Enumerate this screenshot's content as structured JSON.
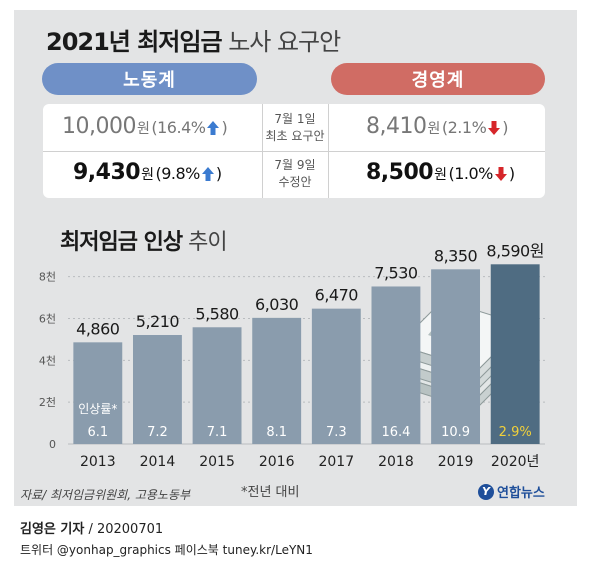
{
  "header": {
    "title_main": "2021년 최저임금",
    "title_sub": " 노사 요구안"
  },
  "labor": {
    "label": "노동계",
    "initial": {
      "value": "10,000",
      "unit": "원",
      "pct": "(16.4%",
      "close": ")",
      "direction": "up"
    },
    "revised": {
      "value": "9,430",
      "unit": "원",
      "pct": "(9.8%",
      "close": ")",
      "direction": "up"
    }
  },
  "management": {
    "label": "경영계",
    "initial": {
      "value": "8,410",
      "unit": "원",
      "pct": "(2.1%",
      "close": ")",
      "direction": "down"
    },
    "revised": {
      "value": "8,500",
      "unit": "원",
      "pct": "(1.0%",
      "close": ")",
      "direction": "down"
    }
  },
  "middle": {
    "initial_line1": "7월 1일",
    "initial_line2": "최초 요구안",
    "revised_line1": "7월 9일",
    "revised_line2": "수정안"
  },
  "colors": {
    "labor": "#6f90c7",
    "management": "#d06c64",
    "up_arrow": "#3b7bd0",
    "down_arrow": "#d6262a",
    "bar": "#8a9cad",
    "bar_highlight": "#4f6c82",
    "highlight_rate": "#f2d13a"
  },
  "chart_data": {
    "type": "bar",
    "title_main": "최저임금 인상",
    "title_sub": " 추이",
    "categories": [
      "2013",
      "2014",
      "2015",
      "2016",
      "2017",
      "2018",
      "2019",
      "2020년"
    ],
    "values": [
      4860,
      5210,
      5580,
      6030,
      6470,
      7530,
      8350,
      8590
    ],
    "value_labels": [
      "4,860",
      "5,210",
      "5,580",
      "6,030",
      "6,470",
      "7,530",
      "8,350",
      "8,590원"
    ],
    "rates": [
      "6.1",
      "7.2",
      "7.1",
      "8.1",
      "7.3",
      "16.4",
      "10.9",
      "2.9%"
    ],
    "rate_label": "인상률*",
    "yticks": [
      {
        "value": 0,
        "label": "0"
      },
      {
        "value": 2000,
        "label": "2천"
      },
      {
        "value": 4000,
        "label": "4천"
      },
      {
        "value": 6000,
        "label": "6천"
      },
      {
        "value": 8000,
        "label": "8천"
      }
    ],
    "ylim": [
      0,
      8700
    ],
    "highlight_index": 7
  },
  "footnote": "*전년 대비",
  "source": "자료/ 최저임금위원회, 고용노동부",
  "brand": {
    "logo": "Y",
    "name": "연합뉴스"
  },
  "byline": {
    "author": "김영은 기자",
    "rest": " / 20200701"
  },
  "social": "트위터 @yonhap_graphics  페이스북 tuney.kr/LeYN1"
}
